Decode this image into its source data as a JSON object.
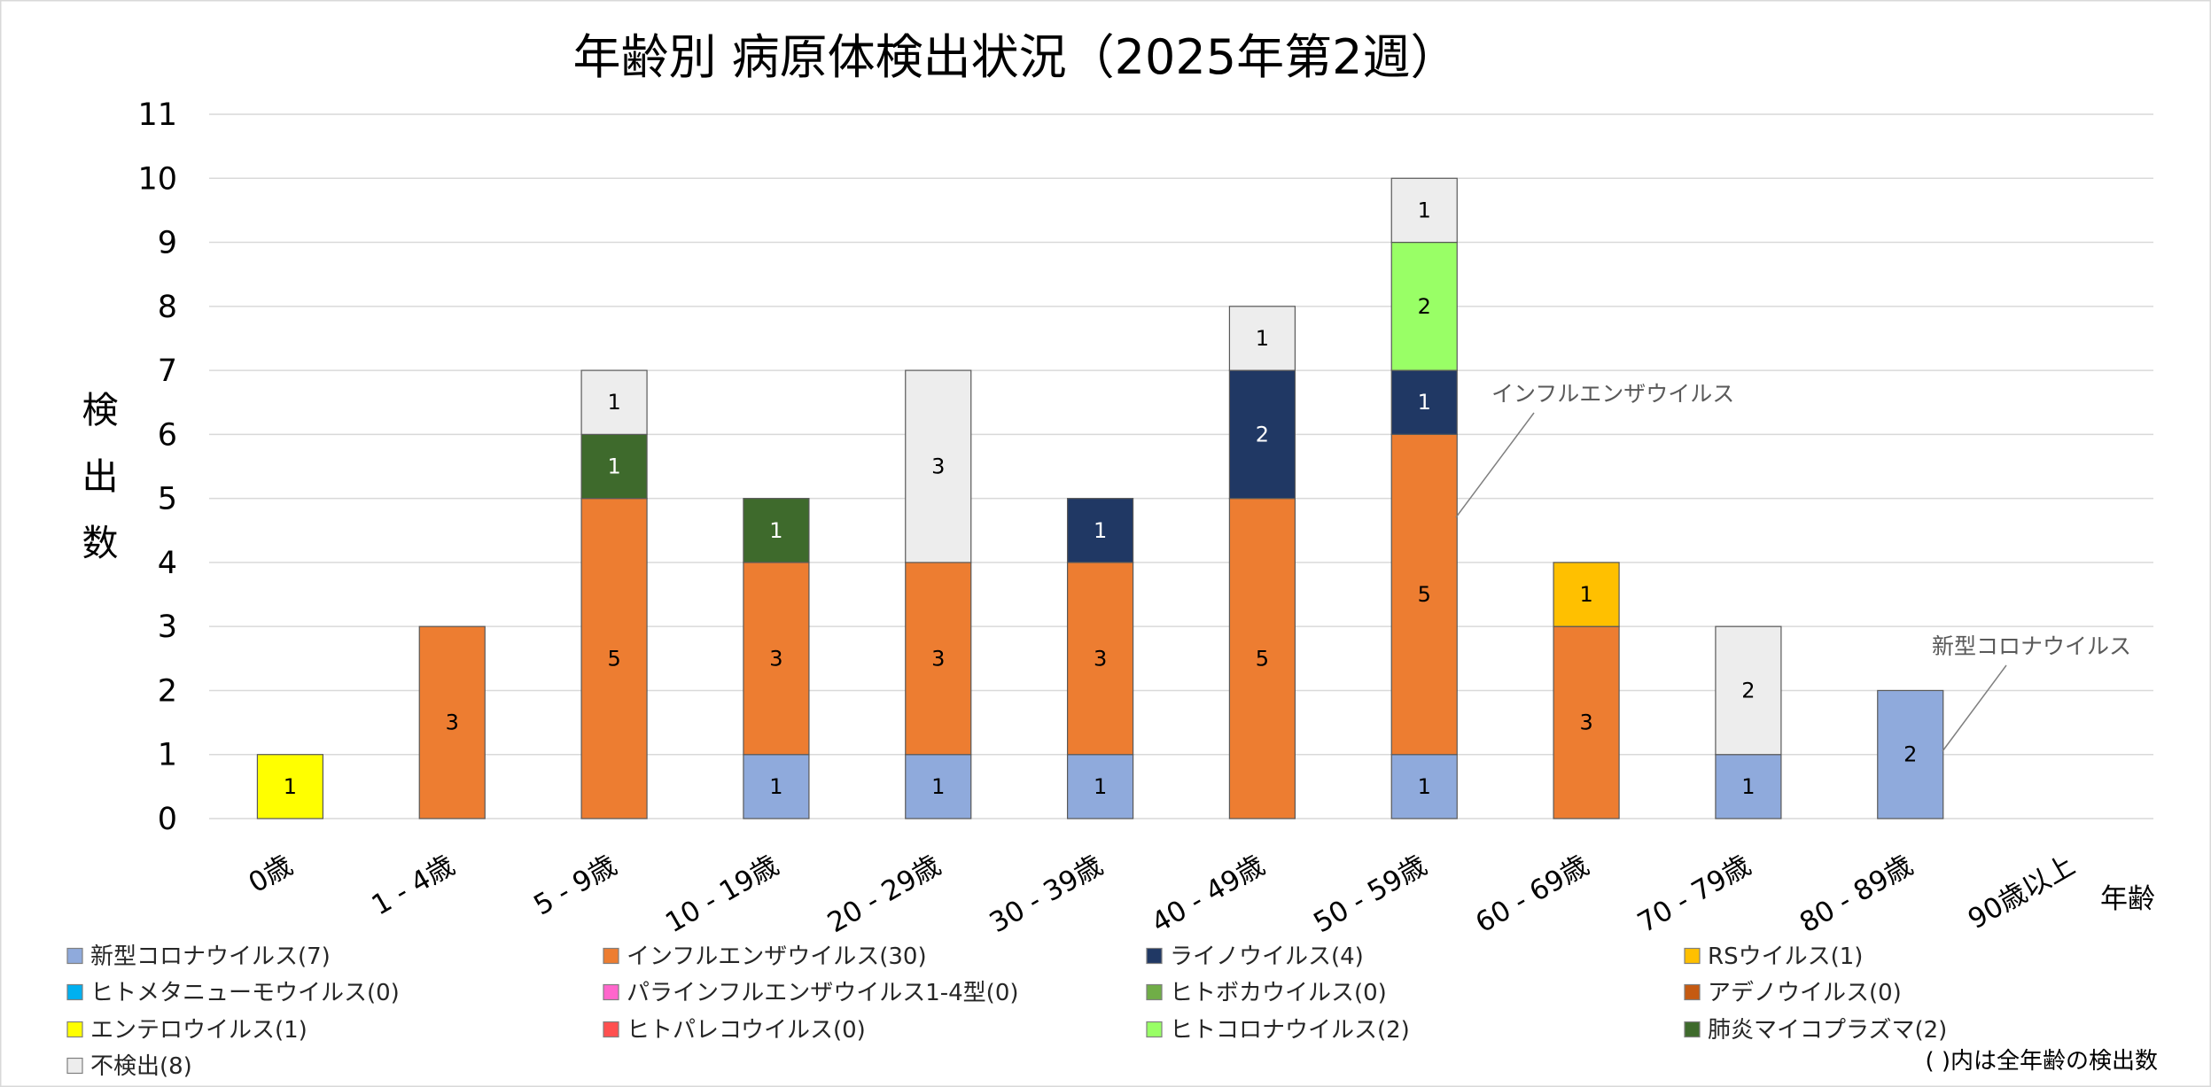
{
  "chart_data": {
    "type": "bar",
    "stacked": true,
    "title": "年齢別 病原体検出状況（2025年第2週）",
    "xlabel": "年齢",
    "ylabel": "検出数",
    "ylim": [
      0,
      11
    ],
    "yticks": [
      0,
      1,
      2,
      3,
      4,
      5,
      6,
      7,
      8,
      9,
      10,
      11
    ],
    "grid": true,
    "legend_position": "bottom",
    "categories": [
      "0歳",
      "1 - 4歳",
      "5 - 9歳",
      "10 - 19歳",
      "20 - 29歳",
      "30 - 39歳",
      "40 - 49歳",
      "50 - 59歳",
      "60 - 69歳",
      "70 - 79歳",
      "80 - 89歳",
      "90歳以上"
    ],
    "series": [
      {
        "name": "新型コロナウイルス(7)",
        "color": "#8FAADC",
        "label_color": "#000000",
        "values": [
          0,
          0,
          0,
          1,
          1,
          1,
          0,
          1,
          0,
          1,
          2,
          0
        ]
      },
      {
        "name": "インフルエンザウイルス(30)",
        "color": "#ED7D31",
        "label_color": "#000000",
        "values": [
          0,
          3,
          5,
          3,
          3,
          3,
          5,
          5,
          3,
          0,
          0,
          0
        ]
      },
      {
        "name": "ライノウイルス(4)",
        "color": "#203864",
        "label_color": "#FFFFFF",
        "values": [
          0,
          0,
          0,
          0,
          0,
          1,
          2,
          1,
          0,
          0,
          0,
          0
        ]
      },
      {
        "name": "RSウイルス(1)",
        "color": "#FFC000",
        "label_color": "#000000",
        "values": [
          0,
          0,
          0,
          0,
          0,
          0,
          0,
          0,
          1,
          0,
          0,
          0
        ]
      },
      {
        "name": "ヒトメタニューモウイルス(0)",
        "color": "#00B0F0",
        "label_color": "#000000",
        "values": [
          0,
          0,
          0,
          0,
          0,
          0,
          0,
          0,
          0,
          0,
          0,
          0
        ]
      },
      {
        "name": "パラインフルエンザウイルス1-4型(0)",
        "color": "#FF66CC",
        "label_color": "#000000",
        "values": [
          0,
          0,
          0,
          0,
          0,
          0,
          0,
          0,
          0,
          0,
          0,
          0
        ]
      },
      {
        "name": "ヒトボカウイルス(0)",
        "color": "#70AD47",
        "label_color": "#000000",
        "values": [
          0,
          0,
          0,
          0,
          0,
          0,
          0,
          0,
          0,
          0,
          0,
          0
        ]
      },
      {
        "name": "アデノウイルス(0)",
        "color": "#C55A11",
        "label_color": "#FFFFFF",
        "values": [
          0,
          0,
          0,
          0,
          0,
          0,
          0,
          0,
          0,
          0,
          0,
          0
        ]
      },
      {
        "name": "エンテロウイルス(1)",
        "color": "#FFFF00",
        "label_color": "#000000",
        "values": [
          1,
          0,
          0,
          0,
          0,
          0,
          0,
          0,
          0,
          0,
          0,
          0
        ]
      },
      {
        "name": "ヒトパレコウイルス(0)",
        "color": "#FF5050",
        "label_color": "#000000",
        "values": [
          0,
          0,
          0,
          0,
          0,
          0,
          0,
          0,
          0,
          0,
          0,
          0
        ]
      },
      {
        "name": "ヒトコロナウイルス(2)",
        "color": "#99FF66",
        "label_color": "#000000",
        "values": [
          0,
          0,
          0,
          0,
          0,
          0,
          0,
          2,
          0,
          0,
          0,
          0
        ]
      },
      {
        "name": "肺炎マイコプラズマ(2)",
        "color": "#3E6A2C",
        "label_color": "#FFFFFF",
        "values": [
          0,
          0,
          1,
          1,
          0,
          0,
          0,
          0,
          0,
          0,
          0,
          0
        ]
      },
      {
        "name": "不検出(8)",
        "color": "#EDEDED",
        "label_color": "#000000",
        "values": [
          0,
          0,
          1,
          0,
          3,
          0,
          1,
          1,
          0,
          2,
          0,
          0
        ]
      }
    ],
    "annotations": [
      {
        "text": "インフルエンザウイルス"
      },
      {
        "text": "新型コロナウイルス"
      }
    ],
    "note": "( )内は全年齢の検出数"
  }
}
